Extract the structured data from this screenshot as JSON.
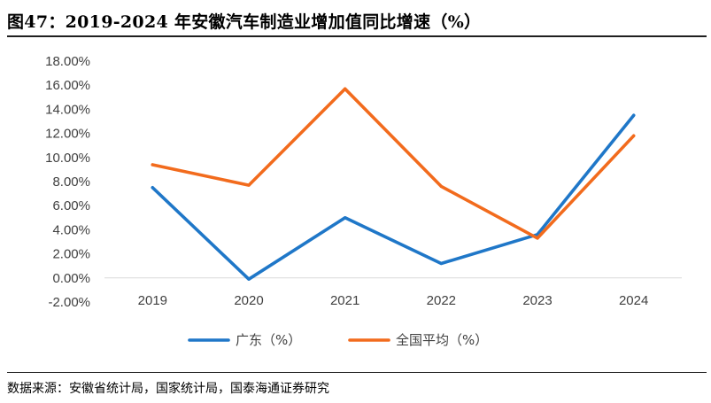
{
  "header": {
    "title": "图47：2019-2024 年安徽汽车制造业增加值同比增速（%）"
  },
  "footer": {
    "source": "数据来源：安徽省统计局，国家统计局，国泰海通证券研究"
  },
  "chart_data": {
    "type": "line",
    "title": "2019-2024 年安徽汽车制造业增加值同比增速（%）",
    "categories": [
      "2019",
      "2020",
      "2021",
      "2022",
      "2023",
      "2024"
    ],
    "ylim": [
      -2,
      18
    ],
    "yticks": [
      -2,
      0,
      2,
      4,
      6,
      8,
      10,
      12,
      14,
      16,
      18
    ],
    "ytick_labels": [
      "-2.00%",
      "0.00%",
      "2.00%",
      "4.00%",
      "6.00%",
      "8.00%",
      "10.00%",
      "12.00%",
      "14.00%",
      "16.00%",
      "18.00%"
    ],
    "xlabel": "",
    "ylabel": "",
    "grid": false,
    "legend_position": "bottom",
    "series": [
      {
        "name": "广东（%）",
        "color": "#1f77c8",
        "values": [
          7.5,
          -0.1,
          5.0,
          1.2,
          3.6,
          13.5
        ]
      },
      {
        "name": "全国平均（%）",
        "color": "#f26b1d",
        "values": [
          9.4,
          7.7,
          15.7,
          7.6,
          3.3,
          11.8
        ]
      }
    ]
  }
}
